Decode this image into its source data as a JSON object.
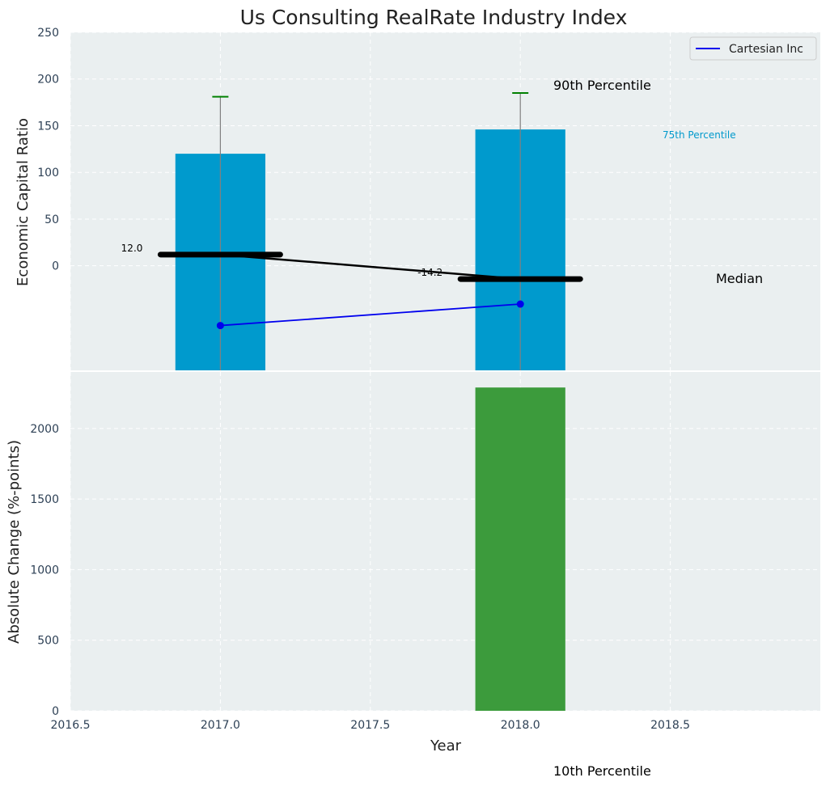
{
  "chart_data": {
    "type": "bar",
    "title": "Us Consulting RealRate Industry Index",
    "xlabel": "Year",
    "xlim": [
      2016.5,
      2019.0
    ],
    "xticks": [
      "2016.5",
      "2017.0",
      "2017.5",
      "2018.0",
      "2018.5"
    ],
    "xtick_values": [
      2016.5,
      2017.0,
      2017.5,
      2018.0,
      2018.5
    ],
    "colors": {
      "plot_bg": "#eaeff0",
      "bar_top": "#009acd",
      "bar_bottom": "#3c9b3c",
      "median": "#000000",
      "company": "#0000ee",
      "whisker": "#808080",
      "cap": "#008000",
      "p75_label": "#0099cc",
      "tick_text": "#2e4156"
    },
    "top": {
      "ylabel": "Economic Capital Ratio",
      "ylim": [
        -112,
        250
      ],
      "yticks": [
        "0",
        "50",
        "100",
        "150",
        "200",
        "250"
      ],
      "ytick_values": [
        0,
        50,
        100,
        150,
        200,
        250
      ],
      "bars": [
        {
          "x": 2017.0,
          "bottom": -112,
          "top": 120
        },
        {
          "x": 2018.0,
          "bottom": -112,
          "top": 146
        }
      ],
      "p90": [
        {
          "x": 2017.0,
          "value": 181
        },
        {
          "x": 2018.0,
          "value": 185
        }
      ],
      "median": [
        {
          "x": 2017.0,
          "value": 12.0,
          "label": "12.0"
        },
        {
          "x": 2018.0,
          "value": -14.2,
          "label": "-14.2"
        }
      ],
      "company": {
        "name": "Cartesian Inc",
        "points": [
          {
            "x": 2017.0,
            "value": -64
          },
          {
            "x": 2018.0,
            "value": -41
          }
        ]
      },
      "annotations": {
        "p90": "90th Percentile",
        "p75": "75th Percentile",
        "median": "Median"
      }
    },
    "bottom": {
      "ylabel": "Absolute Change (%-points)",
      "ylim": [
        0,
        2400
      ],
      "yticks": [
        "0",
        "500",
        "1000",
        "1500",
        "2000"
      ],
      "ytick_values": [
        0,
        500,
        1000,
        1500,
        2000
      ],
      "bars": [
        {
          "x": 2018.0,
          "value": 2290
        }
      ],
      "annotation_p10": "10th Percentile"
    },
    "legend": {
      "position": "top-right",
      "entries": [
        "Cartesian Inc"
      ]
    }
  }
}
